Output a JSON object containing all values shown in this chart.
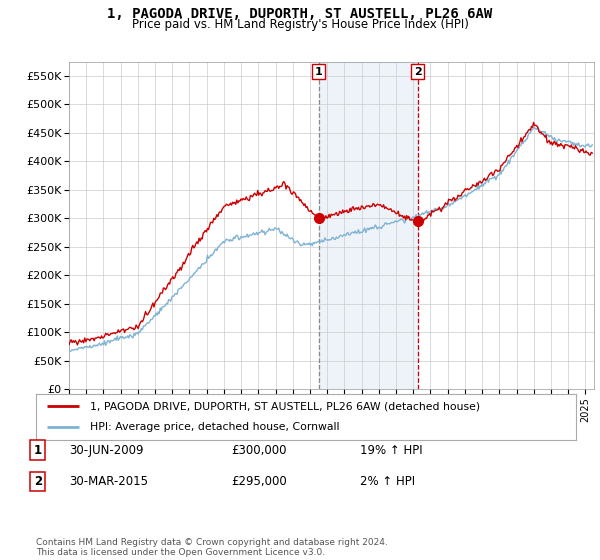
{
  "title": "1, PAGODA DRIVE, DUPORTH, ST AUSTELL, PL26 6AW",
  "subtitle": "Price paid vs. HM Land Registry's House Price Index (HPI)",
  "legend_line1": "1, PAGODA DRIVE, DUPORTH, ST AUSTELL, PL26 6AW (detached house)",
  "legend_line2": "HPI: Average price, detached house, Cornwall",
  "annotation1_label": "1",
  "annotation1_date": "30-JUN-2009",
  "annotation1_price": "£300,000",
  "annotation1_hpi": "19% ↑ HPI",
  "annotation2_label": "2",
  "annotation2_date": "30-MAR-2015",
  "annotation2_price": "£295,000",
  "annotation2_hpi": "2% ↑ HPI",
  "footnote": "Contains HM Land Registry data © Crown copyright and database right 2024.\nThis data is licensed under the Open Government Licence v3.0.",
  "ylim": [
    0,
    575000
  ],
  "yticks": [
    0,
    50000,
    100000,
    150000,
    200000,
    250000,
    300000,
    350000,
    400000,
    450000,
    500000,
    550000
  ],
  "sale1_x": 2009.5,
  "sale1_y": 300000,
  "sale2_x": 2015.25,
  "sale2_y": 295000,
  "vline1_x": 2009.5,
  "vline2_x": 2015.25,
  "bg_color": "#dce8f5",
  "plot_bg": "#ffffff",
  "red_color": "#cc0000",
  "blue_color": "#7fb3d3",
  "vline1_color": "#888888",
  "vline2_color": "#cc0000",
  "xmin": 1995,
  "xmax": 2025.5
}
